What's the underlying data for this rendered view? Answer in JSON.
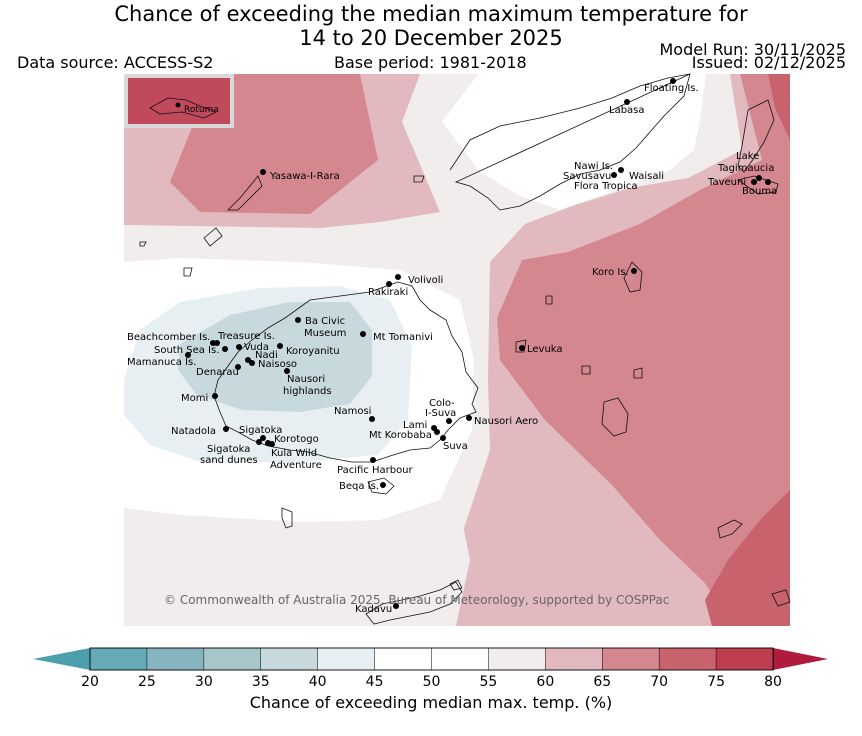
{
  "title": {
    "line1": "Chance of exceeding the median maximum temperature for",
    "line2": "14 to 20 December 2025"
  },
  "meta": {
    "data_source": "Data source: ACCESS-S2",
    "base_period": "Base period: 1981-2018",
    "model_run": "Model Run: 30/11/2025",
    "issued": "Issued: 02/12/2025"
  },
  "copyright": "© Commonwealth of Australia 2025, Bureau of Meteorology, supported by COSPPac",
  "inset_label": "Rotuma",
  "places": [
    {
      "key": "floating",
      "text": "Floating Is."
    },
    {
      "key": "labasa",
      "text": "Labasa"
    },
    {
      "key": "yasawa",
      "text": "Yasawa-I-Rara"
    },
    {
      "key": "nawi",
      "text": "Nawi Is."
    },
    {
      "key": "savusavu",
      "text": "Savusavu"
    },
    {
      "key": "waisali",
      "text": "Waisali"
    },
    {
      "key": "flora",
      "text": "Flora Tropica"
    },
    {
      "key": "lake",
      "text": "Lake"
    },
    {
      "key": "tagimaucia",
      "text": "Tagimaucia"
    },
    {
      "key": "taveuni",
      "text": "Taveuni"
    },
    {
      "key": "bouma",
      "text": "Bouma"
    },
    {
      "key": "koro",
      "text": "Koro Is."
    },
    {
      "key": "volivoli",
      "text": "Volivoli"
    },
    {
      "key": "rakiraki",
      "text": "Rakiraki"
    },
    {
      "key": "beachcomber",
      "text": "Beachcomber Is."
    },
    {
      "key": "treasure",
      "text": "Treasure Is."
    },
    {
      "key": "bacivic",
      "text": "Ba Civic"
    },
    {
      "key": "museum",
      "text": "Museum"
    },
    {
      "key": "tomanivi",
      "text": "Mt Tomanivi"
    },
    {
      "key": "southsea",
      "text": "South Sea Is."
    },
    {
      "key": "vuda",
      "text": "Vuda"
    },
    {
      "key": "koroyanitu",
      "text": "Koroyanitu"
    },
    {
      "key": "nadi",
      "text": "Nadi"
    },
    {
      "key": "mamanuca",
      "text": "Mamanuca Is."
    },
    {
      "key": "naisoso",
      "text": "Naisoso"
    },
    {
      "key": "denarau",
      "text": "Denarau"
    },
    {
      "key": "nausori_hl",
      "text": "Nausori"
    },
    {
      "key": "highlands",
      "text": "highlands"
    },
    {
      "key": "levuka",
      "text": "Levuka"
    },
    {
      "key": "momi",
      "text": "Momi"
    },
    {
      "key": "namosi",
      "text": "Namosi"
    },
    {
      "key": "colo",
      "text": "Colo-"
    },
    {
      "key": "isuva",
      "text": "I-Suva"
    },
    {
      "key": "nausori_aero",
      "text": "Nausori Aero"
    },
    {
      "key": "lami",
      "text": "Lami"
    },
    {
      "key": "korobaba",
      "text": "Mt Korobaba"
    },
    {
      "key": "suva",
      "text": "Suva"
    },
    {
      "key": "natadola",
      "text": "Natadola"
    },
    {
      "key": "sigatoka",
      "text": "Sigatoka"
    },
    {
      "key": "korotogo",
      "text": "Korotogo"
    },
    {
      "key": "sig_sand1",
      "text": "Sigatoka"
    },
    {
      "key": "sig_sand2",
      "text": "sand dunes"
    },
    {
      "key": "kula1",
      "text": "Kula Wild"
    },
    {
      "key": "kula2",
      "text": "Adventure"
    },
    {
      "key": "pacific",
      "text": "Pacific Harbour"
    },
    {
      "key": "beqa",
      "text": "Beqa Is."
    },
    {
      "key": "kadavu",
      "text": "Kadavu"
    }
  ],
  "colorbar": {
    "label": "Chance of exceeding median max. temp. (%)",
    "ticks": [
      "20",
      "25",
      "30",
      "35",
      "40",
      "45",
      "50",
      "55",
      "60",
      "65",
      "70",
      "75",
      "80"
    ],
    "low_extend_color": "#4d9fad",
    "high_extend_color": "#b01a3c",
    "colors": [
      "#66aab7",
      "#87b5bf",
      "#a8c5c9",
      "#c8d9dd",
      "#e8eff2",
      "#ffffff",
      "#ffffff",
      "#f0edec",
      "#e2b9be",
      "#d5878f",
      "#c8626d",
      "#bd3f4f"
    ]
  }
}
